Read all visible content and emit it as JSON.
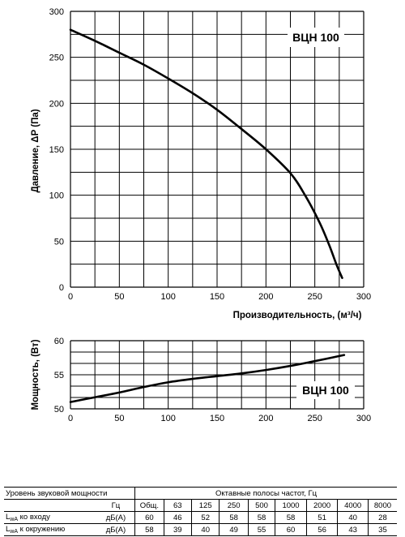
{
  "chart_data": [
    {
      "type": "line",
      "model_label": "ВЦН 100",
      "xlabel": "Производительность, (м³/ч)",
      "ylabel": "Давление, ΔP (Па)",
      "xlim": [
        0,
        300
      ],
      "ylim": [
        0,
        300
      ],
      "x_ticks": [
        "0",
        "50",
        "100",
        "150",
        "200",
        "250",
        "300"
      ],
      "y_ticks": [
        "0",
        "50",
        "100",
        "150",
        "200",
        "250",
        "300"
      ],
      "grid": true,
      "series": [
        {
          "x": [
            0,
            25,
            50,
            75,
            100,
            125,
            150,
            175,
            200,
            225,
            240,
            255,
            265,
            272,
            278
          ],
          "y": [
            280,
            268,
            255,
            242,
            227,
            211,
            193,
            172,
            150,
            124,
            100,
            70,
            45,
            25,
            10
          ]
        }
      ]
    },
    {
      "type": "line",
      "model_label": "ВЦН 100",
      "ylabel": "Мощность, (Вт)",
      "xlim": [
        0,
        300
      ],
      "ylim": [
        50,
        60
      ],
      "x_ticks": [
        "0",
        "50",
        "100",
        "150",
        "200",
        "250",
        "300"
      ],
      "y_ticks": [
        "50",
        "55",
        "60"
      ],
      "grid": true,
      "series": [
        {
          "x": [
            0,
            25,
            50,
            75,
            100,
            125,
            150,
            175,
            200,
            225,
            250,
            280
          ],
          "y": [
            51.0,
            51.7,
            52.4,
            53.2,
            53.9,
            54.4,
            54.8,
            55.2,
            55.7,
            56.3,
            57.0,
            57.9
          ]
        }
      ]
    }
  ],
  "sound_table": {
    "title": "Уровень звуковой мощности",
    "octave_header": "Октавные полосы частот, Гц",
    "unit_hz": "Гц",
    "columns": [
      "Общ.",
      "63",
      "125",
      "250",
      "500",
      "1000",
      "2000",
      "4000",
      "8000"
    ],
    "rows": [
      {
        "label_main": "L",
        "label_sub": "wA",
        "label_rest": " ко входу",
        "unit": "дБ(A)",
        "values": [
          "60",
          "46",
          "52",
          "58",
          "58",
          "58",
          "51",
          "40",
          "28"
        ]
      },
      {
        "label_main": "L",
        "label_sub": "wA",
        "label_rest": " к окружению",
        "unit": "дБ(A)",
        "values": [
          "58",
          "39",
          "40",
          "49",
          "55",
          "60",
          "56",
          "43",
          "35"
        ]
      }
    ]
  }
}
